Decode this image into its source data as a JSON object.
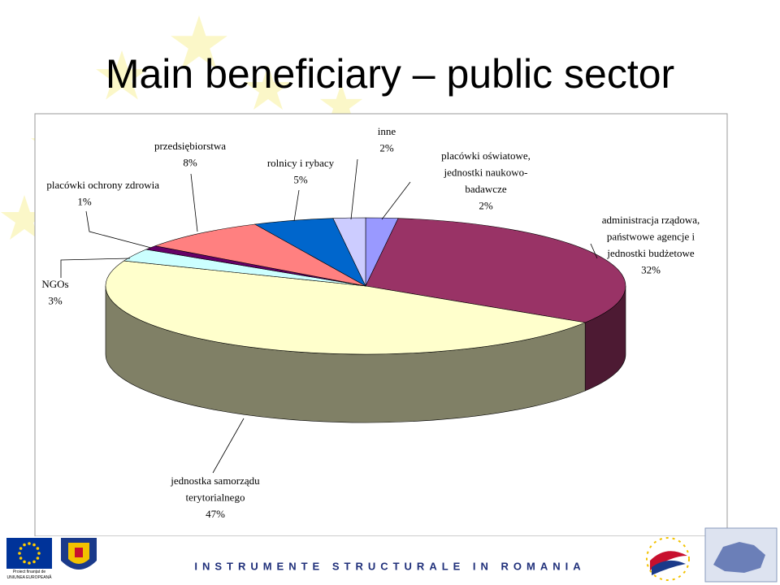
{
  "chart_data": {
    "type": "pie3d",
    "title": "Main beneficiary – public sector",
    "categories": [
      [
        "placówki oświatowe,",
        "jednostki naukowo-",
        "badawcze"
      ],
      [
        "administracja rządowa,",
        "państwowe agencje i",
        "jednostki budżetowe"
      ],
      [
        "jednostka samorządu",
        "terytorialnego"
      ],
      [
        "NGOs"
      ],
      [
        "placówki ochrony zdrowia"
      ],
      [
        "przedsiębiorstwa"
      ],
      [
        "rolnicy i rybacy"
      ],
      [
        "inne"
      ]
    ],
    "values": [
      2,
      32,
      47,
      3,
      1,
      8,
      5,
      2
    ],
    "value_labels": [
      "2%",
      "32%",
      "47%",
      "3%",
      "1%",
      "8%",
      "5%",
      "2%"
    ],
    "colors": [
      "#9999ff",
      "#993366",
      "#ffffcc",
      "#ccffff",
      "#660066",
      "#ff8080",
      "#0066cc",
      "#ccccff"
    ]
  },
  "footer": {
    "text": "INSTRUMENTE STRUCTURALE IN ROMANIA",
    "eu_note": [
      "Proiect finanțat de",
      "UNIUNEA EUROPEANĂ"
    ]
  }
}
